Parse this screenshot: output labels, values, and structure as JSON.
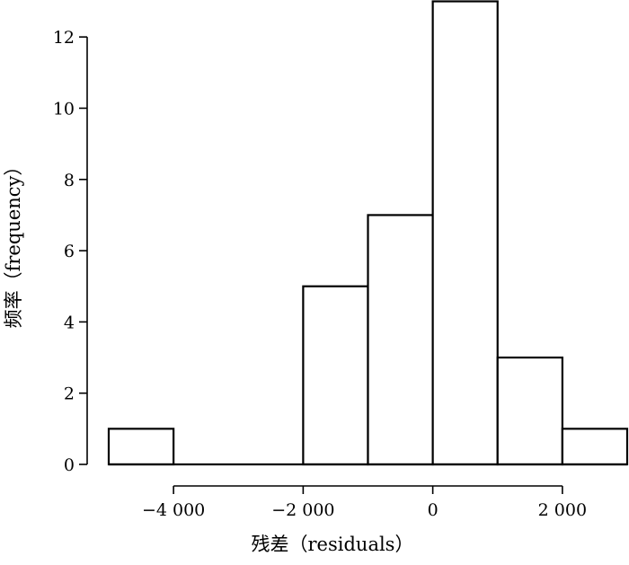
{
  "chart_data": {
    "type": "bar",
    "subtype": "histogram",
    "xlabel": "残差（residuals）",
    "ylabel": "频率（frequency）",
    "bins": [
      {
        "start": -5000,
        "end": -4000,
        "count": 1
      },
      {
        "start": -4000,
        "end": -3000,
        "count": 0
      },
      {
        "start": -3000,
        "end": -2000,
        "count": 0
      },
      {
        "start": -2000,
        "end": -1000,
        "count": 5
      },
      {
        "start": -1000,
        "end": 0,
        "count": 7
      },
      {
        "start": 0,
        "end": 1000,
        "count": 13
      },
      {
        "start": 1000,
        "end": 2000,
        "count": 3
      },
      {
        "start": 2000,
        "end": 3000,
        "count": 1
      }
    ],
    "xlim": [
      -5000,
      3000
    ],
    "ylim": [
      0,
      13
    ],
    "xticks": [
      -4000,
      -2000,
      0,
      2000
    ],
    "xtick_labels": [
      "−4 000",
      "−2 000",
      "0",
      "2 000"
    ],
    "yticks": [
      0,
      2,
      4,
      6,
      8,
      10,
      12
    ],
    "ytick_labels": [
      "0",
      "2",
      "4",
      "6",
      "8",
      "10",
      "12"
    ],
    "grid": false,
    "bar_fill": "#ffffff",
    "bar_stroke": "#000000"
  }
}
